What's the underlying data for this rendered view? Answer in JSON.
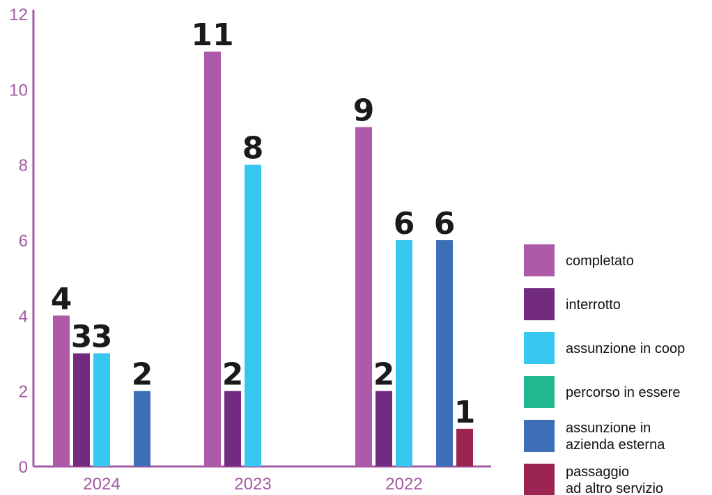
{
  "colors": {
    "axis": "#a25aa3",
    "label": "#1a1a1a"
  },
  "chart_data": {
    "type": "bar",
    "categories": [
      "2024",
      "2023",
      "2022"
    ],
    "ylim": [
      0,
      12
    ],
    "yticks": [
      0,
      2,
      4,
      6,
      8,
      10,
      12
    ],
    "grid": false,
    "legend_position": "right",
    "series": [
      {
        "name": "completato",
        "color": "#ad5aa8",
        "values": [
          4,
          11,
          9
        ]
      },
      {
        "name": "interrotto",
        "color": "#722b7e",
        "values": [
          3,
          2,
          2
        ]
      },
      {
        "name": "assunzione in coop",
        "color": "#35c7f0",
        "values": [
          3,
          8,
          6
        ]
      },
      {
        "name": "percorso in essere",
        "color": "#20b88f",
        "values": [
          0,
          0,
          0
        ]
      },
      {
        "name": "assunzione in\nazienda esterna",
        "color": "#3c6fb8",
        "values": [
          2,
          0,
          6
        ]
      },
      {
        "name": "passaggio\nad altro servizio",
        "color": "#9b2452",
        "values": [
          0,
          0,
          1
        ]
      }
    ]
  }
}
